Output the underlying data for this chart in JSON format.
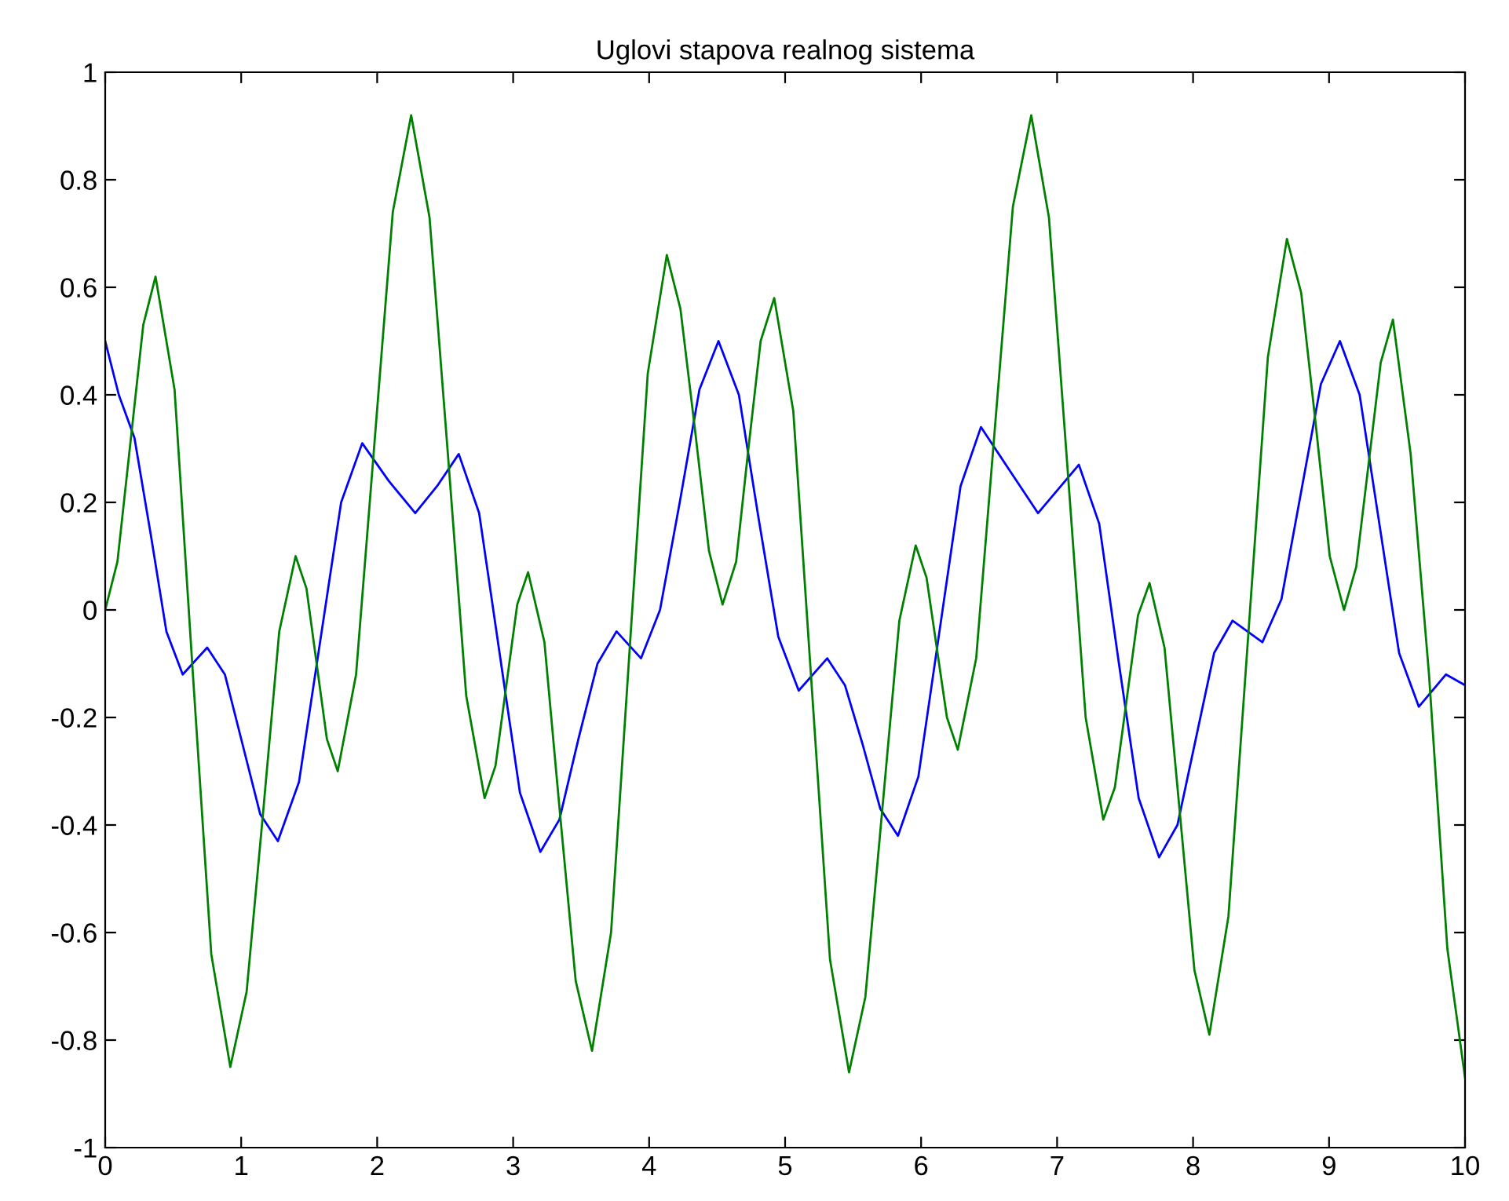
{
  "chart_data": {
    "type": "line",
    "title": "Uglovi stapova realnog sistema",
    "series": [
      {
        "color": "#0000ff",
        "x": [
          0,
          0.1,
          0.215,
          0.335,
          0.45,
          0.57,
          0.75,
          0.88,
          1.01,
          1.14,
          1.27,
          1.425,
          1.58,
          1.735,
          1.89,
          2.085,
          2.28,
          2.44,
          2.6,
          2.75,
          2.9,
          3.05,
          3.2,
          3.34,
          3.48,
          3.62,
          3.76,
          3.94,
          4.08,
          4.225,
          4.37,
          4.51,
          4.66,
          4.805,
          4.95,
          5.1,
          5.31,
          5.44,
          5.57,
          5.7,
          5.83,
          5.98,
          6.135,
          6.29,
          6.44,
          6.65,
          6.86,
          7.16,
          7.31,
          7.455,
          7.6,
          7.75,
          7.885,
          8.02,
          8.155,
          8.29,
          8.51,
          8.65,
          8.795,
          8.94,
          9.08,
          9.225,
          9.37,
          9.515,
          9.66,
          9.86,
          10
        ],
        "values": [
          0.5,
          0.4,
          0.32,
          0.14,
          -0.04,
          -0.12,
          -0.07,
          -0.12,
          -0.25,
          -0.38,
          -0.43,
          -0.32,
          -0.06,
          0.2,
          0.31,
          0.24,
          0.18,
          0.23,
          0.29,
          0.18,
          -0.08,
          -0.34,
          -0.45,
          -0.39,
          -0.24,
          -0.1,
          -0.04,
          -0.09,
          0.0,
          0.2,
          0.41,
          0.5,
          0.4,
          0.17,
          -0.05,
          -0.15,
          -0.09,
          -0.14,
          -0.25,
          -0.37,
          -0.42,
          -0.31,
          -0.04,
          0.23,
          0.34,
          0.26,
          0.18,
          0.27,
          0.16,
          -0.1,
          -0.35,
          -0.46,
          -0.4,
          -0.24,
          -0.08,
          -0.02,
          -0.06,
          0.02,
          0.22,
          0.42,
          0.5,
          0.4,
          0.16,
          -0.08,
          -0.18,
          -0.12,
          -0.14
        ]
      },
      {
        "color": "#008000",
        "x": [
          0,
          0.09,
          0.185,
          0.28,
          0.37,
          0.51,
          0.645,
          0.78,
          0.92,
          1.04,
          1.16,
          1.28,
          1.4,
          1.48,
          1.555,
          1.63,
          1.71,
          1.845,
          1.98,
          2.115,
          2.25,
          2.385,
          2.52,
          2.655,
          2.79,
          2.87,
          2.95,
          3.03,
          3.11,
          3.23,
          3.345,
          3.46,
          3.58,
          3.72,
          3.855,
          3.99,
          4.13,
          4.23,
          4.335,
          4.44,
          4.54,
          4.64,
          4.73,
          4.82,
          4.92,
          5.06,
          5.195,
          5.33,
          5.47,
          5.59,
          5.715,
          5.84,
          5.96,
          6.04,
          6.115,
          6.19,
          6.27,
          6.405,
          6.54,
          6.675,
          6.81,
          6.94,
          7.075,
          7.21,
          7.34,
          7.425,
          7.51,
          7.595,
          7.68,
          7.79,
          7.9,
          8.01,
          8.12,
          8.26,
          8.405,
          8.55,
          8.69,
          8.795,
          8.9,
          9.005,
          9.11,
          9.2,
          9.29,
          9.38,
          9.47,
          9.6,
          9.735,
          9.87,
          10
        ],
        "values": [
          0.0,
          0.09,
          0.31,
          0.53,
          0.62,
          0.41,
          -0.12,
          -0.64,
          -0.85,
          -0.71,
          -0.38,
          -0.04,
          0.1,
          0.04,
          -0.1,
          -0.24,
          -0.3,
          -0.12,
          0.31,
          0.74,
          0.92,
          0.73,
          0.29,
          -0.16,
          -0.35,
          -0.29,
          -0.14,
          0.01,
          0.07,
          -0.06,
          -0.38,
          -0.69,
          -0.82,
          -0.6,
          -0.08,
          0.44,
          0.66,
          0.56,
          0.34,
          0.11,
          0.01,
          0.09,
          0.3,
          0.5,
          0.58,
          0.37,
          -0.14,
          -0.65,
          -0.86,
          -0.72,
          -0.37,
          -0.02,
          0.12,
          0.06,
          -0.07,
          -0.2,
          -0.26,
          -0.09,
          0.33,
          0.75,
          0.92,
          0.73,
          0.27,
          -0.2,
          -0.39,
          -0.33,
          -0.17,
          -0.01,
          0.05,
          -0.07,
          -0.37,
          -0.67,
          -0.79,
          -0.57,
          -0.05,
          0.47,
          0.69,
          0.59,
          0.35,
          0.1,
          0.0,
          0.08,
          0.27,
          0.46,
          0.54,
          0.29,
          -0.12,
          -0.63,
          -0.87
        ]
      }
    ],
    "xlim": [
      0,
      10
    ],
    "xticks": [
      0,
      1,
      2,
      3,
      4,
      5,
      6,
      7,
      8,
      9,
      10
    ],
    "ylim": [
      -1,
      1
    ],
    "yticks": [
      -1,
      -0.8,
      -0.6,
      -0.4,
      -0.2,
      0,
      0.2,
      0.4,
      0.6,
      0.8,
      1
    ],
    "grid": false,
    "legend": false,
    "marker": "none",
    "line_style": "solid"
  }
}
